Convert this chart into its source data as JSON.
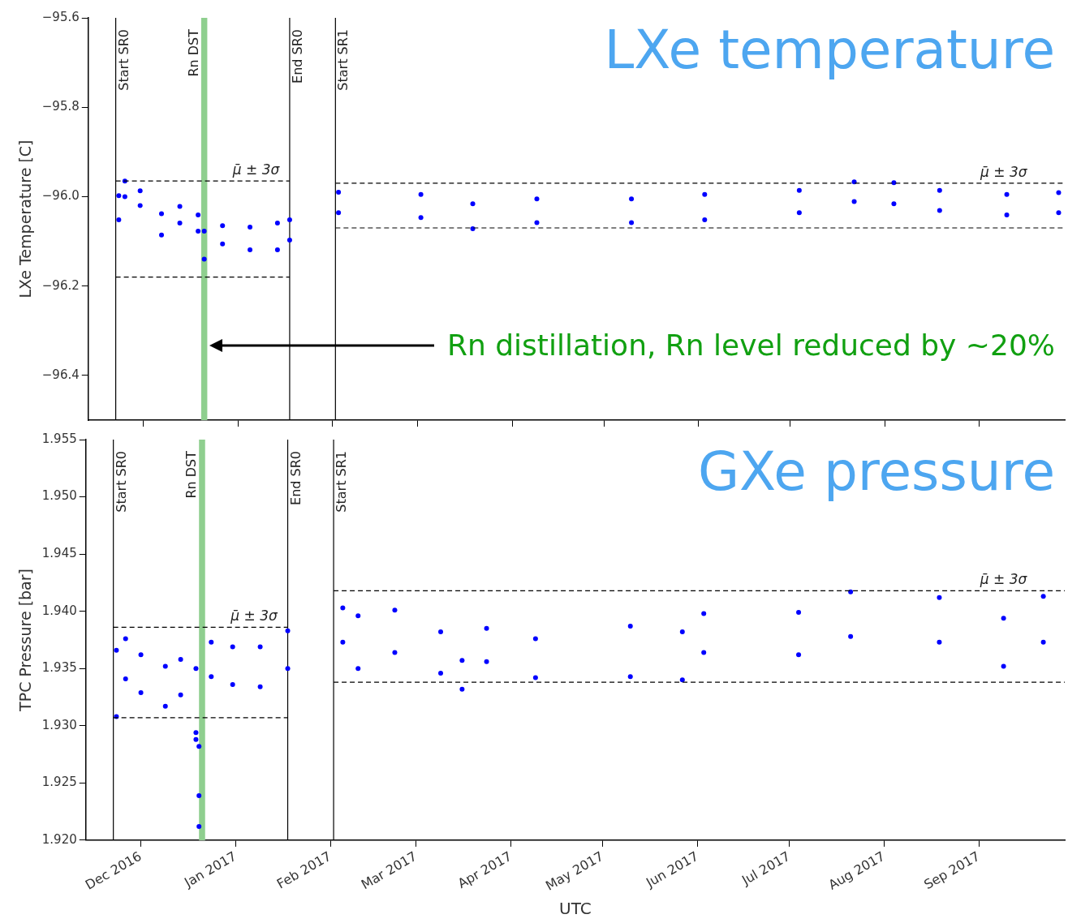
{
  "chart_data": [
    {
      "type": "scatter",
      "title": "LXe temperature",
      "ylabel": "LXe Temperature [C]",
      "tick_labels": "y",
      "xlim": [
        "2016-11-13",
        "2017-09-29"
      ],
      "xticks": [
        {
          "value": "2016-12-01",
          "label": null
        },
        {
          "value": "2017-01-01",
          "label": null
        },
        {
          "value": "2017-02-01",
          "label": null
        },
        {
          "value": "2017-03-01",
          "label": null
        },
        {
          "value": "2017-04-01",
          "label": null
        },
        {
          "value": "2017-05-01",
          "label": null
        },
        {
          "value": "2017-06-01",
          "label": null
        },
        {
          "value": "2017-07-01",
          "label": null
        },
        {
          "value": "2017-08-01",
          "label": null
        },
        {
          "value": "2017-09-01",
          "label": null
        }
      ],
      "ylim": [
        -96.5,
        -95.6
      ],
      "yticks": [
        {
          "value": -96.4,
          "label": "−96.4"
        },
        {
          "value": -96.2,
          "label": "−96.2"
        },
        {
          "value": -96.0,
          "label": "−96.0"
        },
        {
          "value": -95.8,
          "label": "−95.8"
        },
        {
          "value": -95.6,
          "label": "−95.6"
        }
      ],
      "series": [
        {
          "color": "#0000ff",
          "marker": "circle",
          "x": [
            "2016-11-23",
            "2016-11-23",
            "2016-11-25",
            "2016-11-25",
            "2016-11-30",
            "2016-11-30",
            "2016-12-07",
            "2016-12-07",
            "2016-12-13",
            "2016-12-13",
            "2016-12-19",
            "2016-12-19",
            "2016-12-21",
            "2016-12-21",
            "2016-12-27",
            "2016-12-27",
            "2017-01-05",
            "2017-01-05",
            "2017-01-14",
            "2017-01-14",
            "2017-01-18",
            "2017-01-18",
            "2017-02-03",
            "2017-02-03",
            "2017-03-02",
            "2017-03-02",
            "2017-03-19",
            "2017-03-19",
            "2017-04-09",
            "2017-04-09",
            "2017-05-10",
            "2017-05-10",
            "2017-06-03",
            "2017-06-03",
            "2017-07-04",
            "2017-07-04",
            "2017-07-22",
            "2017-07-22",
            "2017-08-04",
            "2017-08-04",
            "2017-08-19",
            "2017-08-19",
            "2017-09-10",
            "2017-09-10",
            "2017-09-27",
            "2017-09-27"
          ],
          "values": [
            -95.998,
            -96.052,
            -95.965,
            -96.0,
            -95.987,
            -96.02,
            -96.038,
            -96.086,
            -96.022,
            -96.059,
            -96.041,
            -96.077,
            -96.077,
            -96.14,
            -96.065,
            -96.106,
            -96.068,
            -96.119,
            -96.059,
            -96.119,
            -96.052,
            -96.097,
            -95.99,
            -96.036,
            -95.995,
            -96.047,
            -96.016,
            -96.072,
            -96.005,
            -96.058,
            -96.005,
            -96.058,
            -95.995,
            -96.052,
            -95.986,
            -96.036,
            -95.967,
            -96.011,
            -95.969,
            -96.016,
            -95.986,
            -96.031,
            -95.995,
            -96.041,
            -95.991,
            -96.036
          ]
        },
        {
          "type": "line",
          "line_style": "dashed",
          "color": "#000000",
          "x": [
            "2016-11-22",
            "2017-01-18"
          ],
          "values": [
            -95.965,
            -95.965
          ]
        },
        {
          "type": "line",
          "line_style": "dashed",
          "color": "#000000",
          "x": [
            "2016-11-22",
            "2017-01-18"
          ],
          "values": [
            -96.18,
            -96.18
          ]
        },
        {
          "type": "line",
          "line_style": "dashed",
          "color": "#000000",
          "x": [
            "2017-02-02",
            "2017-09-29"
          ],
          "values": [
            -95.97,
            -95.97
          ]
        },
        {
          "type": "line",
          "line_style": "dashed",
          "color": "#000000",
          "x": [
            "2017-02-02",
            "2017-09-29"
          ],
          "values": [
            -96.07,
            -96.07
          ]
        }
      ],
      "ref_lines": [
        {
          "axis": "x",
          "value": "2016-11-22",
          "label": "Start SR0",
          "color": "#000000"
        },
        {
          "axis": "x",
          "value": "2017-01-18",
          "label": "End SR0",
          "color": "#000000"
        },
        {
          "axis": "x",
          "value": "2017-02-02",
          "label": "Start SR1",
          "color": "#000000"
        }
      ],
      "bands": [
        {
          "axis": "x",
          "from": "2016-12-20",
          "to": "2016-12-22",
          "label": "Rn DST",
          "color": "#8fcf8f"
        }
      ],
      "annotations": [
        {
          "text": "μ̄ ± 3σ",
          "x": "2017-01-07",
          "y": -95.965
        },
        {
          "text": "μ̄ ± 3σ",
          "x": "2017-09-09",
          "y": -95.97
        },
        "Rn distillation, Rn level reduced by ~20%"
      ]
    },
    {
      "type": "scatter",
      "title": "GXe pressure",
      "xlabel": "UTC",
      "ylabel": "TPC Pressure [bar]",
      "xlim": [
        "2016-11-13",
        "2017-09-29"
      ],
      "xticks": [
        {
          "value": "2016-12-01",
          "label": "Dec 2016"
        },
        {
          "value": "2017-01-01",
          "label": "Jan 2017"
        },
        {
          "value": "2017-02-01",
          "label": "Feb 2017"
        },
        {
          "value": "2017-03-01",
          "label": "Mar 2017"
        },
        {
          "value": "2017-04-01",
          "label": "Apr 2017"
        },
        {
          "value": "2017-05-01",
          "label": "May 2017"
        },
        {
          "value": "2017-06-01",
          "label": "Jun 2017"
        },
        {
          "value": "2017-07-01",
          "label": "Jul 2017"
        },
        {
          "value": "2017-08-01",
          "label": "Aug 2017"
        },
        {
          "value": "2017-09-01",
          "label": "Sep 2017"
        }
      ],
      "ylim": [
        1.92,
        1.955
      ],
      "yticks": [
        {
          "value": 1.92,
          "label": "1.920"
        },
        {
          "value": 1.925,
          "label": "1.925"
        },
        {
          "value": 1.93,
          "label": "1.930"
        },
        {
          "value": 1.935,
          "label": "1.935"
        },
        {
          "value": 1.94,
          "label": "1.940"
        },
        {
          "value": 1.945,
          "label": "1.945"
        },
        {
          "value": 1.95,
          "label": "1.950"
        },
        {
          "value": 1.955,
          "label": "1.955"
        }
      ],
      "series": [
        {
          "color": "#0000ff",
          "marker": "circle",
          "x": [
            "2016-11-23",
            "2016-11-23",
            "2016-11-26",
            "2016-11-26",
            "2016-12-01",
            "2016-12-01",
            "2016-12-09",
            "2016-12-09",
            "2016-12-14",
            "2016-12-14",
            "2016-12-19",
            "2016-12-19",
            "2016-12-19",
            "2016-12-20",
            "2016-12-20",
            "2016-12-20",
            "2016-12-24",
            "2016-12-24",
            "2016-12-31",
            "2016-12-31",
            "2017-01-09",
            "2017-01-09",
            "2017-01-18",
            "2017-01-18",
            "2017-02-05",
            "2017-02-05",
            "2017-02-10",
            "2017-02-10",
            "2017-02-22",
            "2017-02-22",
            "2017-03-09",
            "2017-03-09",
            "2017-03-16",
            "2017-03-16",
            "2017-03-24",
            "2017-03-24",
            "2017-04-09",
            "2017-04-09",
            "2017-05-10",
            "2017-05-10",
            "2017-05-27",
            "2017-05-27",
            "2017-06-03",
            "2017-06-03",
            "2017-07-04",
            "2017-07-04",
            "2017-07-21",
            "2017-07-21",
            "2017-08-19",
            "2017-08-19",
            "2017-09-09",
            "2017-09-09",
            "2017-09-22",
            "2017-09-22"
          ],
          "values": [
            1.9366,
            1.9308,
            1.9376,
            1.9341,
            1.9362,
            1.9329,
            1.9352,
            1.9317,
            1.9358,
            1.9327,
            1.935,
            1.9294,
            1.9288,
            1.9282,
            1.9239,
            1.9212,
            1.9373,
            1.9343,
            1.9369,
            1.9336,
            1.9369,
            1.9334,
            1.9383,
            1.935,
            1.9403,
            1.9373,
            1.9396,
            1.935,
            1.9401,
            1.9364,
            1.9382,
            1.9346,
            1.9357,
            1.9332,
            1.9385,
            1.9356,
            1.9376,
            1.9342,
            1.9387,
            1.9343,
            1.9382,
            1.934,
            1.9398,
            1.9364,
            1.9399,
            1.9362,
            1.9417,
            1.9378,
            1.9412,
            1.9373,
            1.9394,
            1.9352,
            1.9413,
            1.9373
          ]
        },
        {
          "type": "line",
          "line_style": "dashed",
          "color": "#000000",
          "x": [
            "2016-11-22",
            "2017-01-18"
          ],
          "values": [
            1.9386,
            1.9386
          ]
        },
        {
          "type": "line",
          "line_style": "dashed",
          "color": "#000000",
          "x": [
            "2016-11-22",
            "2017-01-18"
          ],
          "values": [
            1.9307,
            1.9307
          ]
        },
        {
          "type": "line",
          "line_style": "dashed",
          "color": "#000000",
          "x": [
            "2017-02-02",
            "2017-09-29"
          ],
          "values": [
            1.9418,
            1.9418
          ]
        },
        {
          "type": "line",
          "line_style": "dashed",
          "color": "#000000",
          "x": [
            "2017-02-02",
            "2017-09-29"
          ],
          "values": [
            1.9338,
            1.9338
          ]
        }
      ],
      "ref_lines": [
        {
          "axis": "x",
          "value": "2016-11-22",
          "label": "Start SR0",
          "color": "#000000"
        },
        {
          "axis": "x",
          "value": "2017-01-18",
          "label": "End SR0",
          "color": "#000000"
        },
        {
          "axis": "x",
          "value": "2017-02-02",
          "label": "Start SR1",
          "color": "#000000"
        }
      ],
      "bands": [
        {
          "axis": "x",
          "from": "2016-12-20",
          "to": "2016-12-22",
          "label": "Rn DST",
          "color": "#8fcf8f"
        }
      ],
      "annotations": [
        {
          "text": "μ̄ ± 3σ",
          "x": "2017-01-07",
          "y": 1.9386
        },
        {
          "text": "μ̄ ± 3σ",
          "x": "2017-09-09",
          "y": 1.9418
        }
      ]
    }
  ]
}
